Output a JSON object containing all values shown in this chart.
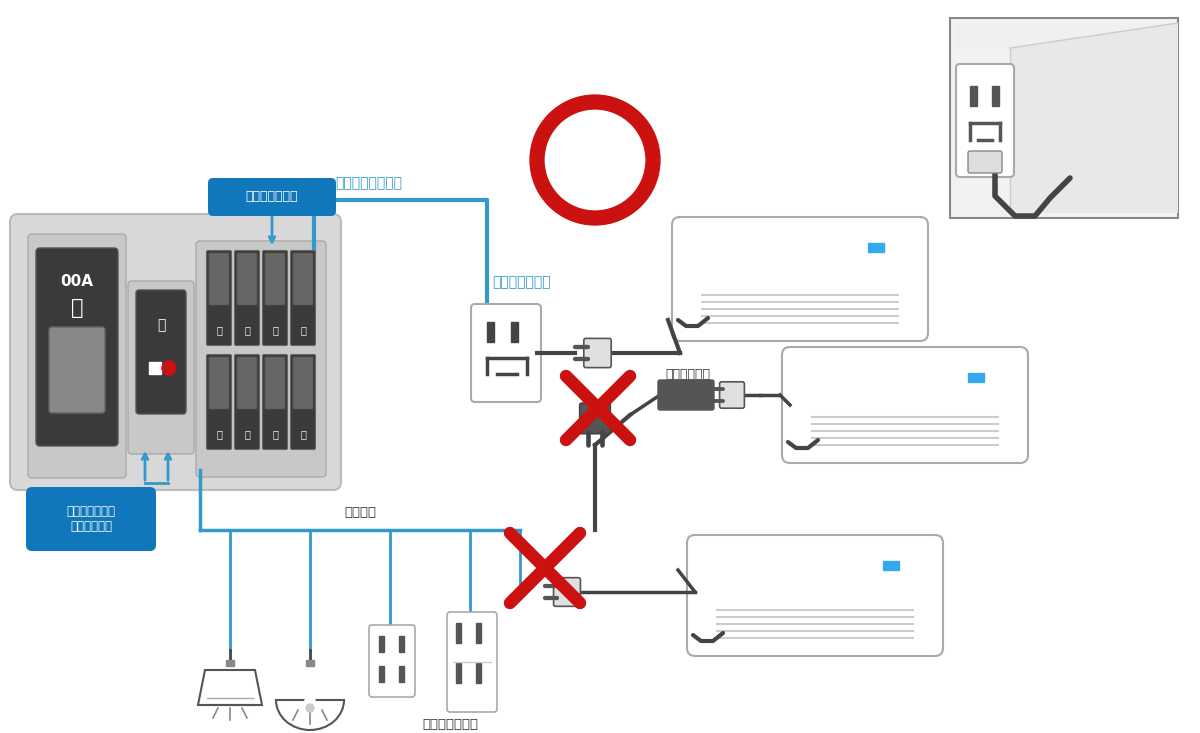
{
  "bg_color": "#ffffff",
  "blue": "#3399cc",
  "dark_blue_label": "#1177bb",
  "red": "#cc1111",
  "gray_panel_outer": "#d0d0d0",
  "gray_panel_inner": "#c8c8c8",
  "dark_switch": "#444444",
  "mid_gray": "#888888",
  "light_gray": "#cccccc",
  "text_color": "#333333",
  "cord_color": "#444444",
  "labels": {
    "bunki": "分岐ブレーカー",
    "aircon_circuit": "エアコン専用回路",
    "senyo_outlet": "専用コンセント",
    "main_breaker": "主幹ブレーカー\n漏電遮断器等",
    "general_circuit": "一般回路",
    "extension_cable": "延長ケーブル",
    "general_outlet": "一般コンセント"
  }
}
